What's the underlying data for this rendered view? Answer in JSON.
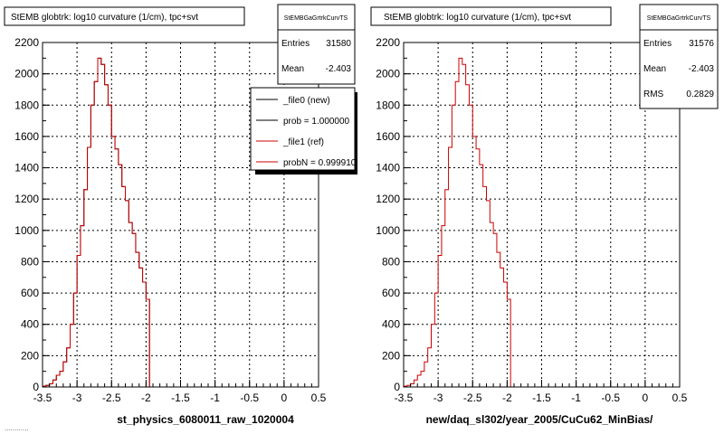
{
  "colors": {
    "background": "#ffffff",
    "frame": "#000000",
    "grid": "#000000",
    "new_line": "#000000",
    "ref_hist": "#cc0000",
    "legend_shadow": "#000000"
  },
  "left_panel": {
    "title": "StEMB globtrk: log10 curvature (1/cm), tpc+svt",
    "stats": {
      "name": "StEMBGaGrtrkCurvTS",
      "rows": [
        {
          "label": "Entries",
          "value": "31580"
        },
        {
          "label": "Mean",
          "value": "-2.403"
        }
      ]
    },
    "legend": [
      {
        "text": "_file0 (new)",
        "color": "#000000"
      },
      {
        "text": "prob = 1.000000",
        "color": "#000000"
      },
      {
        "text": "_file1 (ref)",
        "color": "#cc0000"
      },
      {
        "text": "probN = 0.999910",
        "color": "#cc0000"
      }
    ],
    "xlabel": "st_physics_6080011_raw_1020004"
  },
  "right_panel": {
    "title": "StEMB globtrk: log10 curvature (1/cm), tpc+svt",
    "stats": {
      "name": "StEMBGaGrtrkCurvTS",
      "rows": [
        {
          "label": "Entries",
          "value": "31576"
        },
        {
          "label": "Mean",
          "value": "-2.403"
        },
        {
          "label": "RMS",
          "value": "0.2829"
        }
      ]
    },
    "xlabel": "new/daq_sl302/year_2005/CuCu62_MinBias/"
  },
  "footer_text": "............",
  "chart_data": [
    {
      "type": "bar",
      "subtype": "step-histogram",
      "title": "StEMB globtrk: log10 curvature (1/cm), tpc+svt",
      "xlabel": "st_physics_6080011_raw_1020004",
      "ylabel": "",
      "xlim": [
        -3.5,
        0.5
      ],
      "ylim": [
        0,
        2200
      ],
      "xticks": [
        "-3.5",
        "-3",
        "-2.5",
        "-2",
        "-1.5",
        "-1",
        "-0.5",
        "0",
        "0.5"
      ],
      "yticks": [
        "0",
        "200",
        "400",
        "600",
        "800",
        "1000",
        "1200",
        "1400",
        "1600",
        "1800",
        "2000",
        "2200"
      ],
      "grid": true,
      "bin_width": 0.05,
      "x": [
        -3.5,
        -3.45,
        -3.4,
        -3.35,
        -3.3,
        -3.25,
        -3.2,
        -3.15,
        -3.1,
        -3.05,
        -3.0,
        -2.95,
        -2.9,
        -2.85,
        -2.8,
        -2.75,
        -2.7,
        -2.65,
        -2.6,
        -2.55,
        -2.5,
        -2.45,
        -2.4,
        -2.35,
        -2.3,
        -2.25,
        -2.2,
        -2.15,
        -2.1,
        -2.05,
        -2.0,
        -1.95,
        -1.9,
        -1.85
      ],
      "series": [
        {
          "name": "_file0 (new)",
          "values": [
            5,
            10,
            20,
            45,
            75,
            100,
            160,
            250,
            400,
            600,
            840,
            1030,
            1260,
            1530,
            1800,
            1950,
            2100,
            2060,
            1930,
            1800,
            1600,
            1520,
            1420,
            1280,
            1190,
            1050,
            980,
            860,
            760,
            670,
            560,
            0,
            0,
            0
          ]
        },
        {
          "name": "_file1 (ref)",
          "values": [
            5,
            10,
            20,
            45,
            75,
            100,
            160,
            250,
            400,
            600,
            840,
            1030,
            1260,
            1530,
            1800,
            1950,
            2100,
            2060,
            1930,
            1800,
            1600,
            1520,
            1420,
            1280,
            1190,
            1050,
            980,
            860,
            760,
            670,
            560,
            0,
            0,
            0
          ]
        }
      ]
    },
    {
      "type": "bar",
      "subtype": "step-histogram",
      "title": "StEMB globtrk: log10 curvature (1/cm), tpc+svt",
      "xlabel": "new/daq_sl302/year_2005/CuCu62_MinBias/",
      "ylabel": "",
      "xlim": [
        -3.5,
        0.5
      ],
      "ylim": [
        0,
        2200
      ],
      "xticks": [
        "-3.5",
        "-3",
        "-2.5",
        "-2",
        "-1.5",
        "-1",
        "-0.5",
        "0",
        "0.5"
      ],
      "yticks": [
        "0",
        "200",
        "400",
        "600",
        "800",
        "1000",
        "1200",
        "1400",
        "1600",
        "1800",
        "2000",
        "2200"
      ],
      "grid": true,
      "bin_width": 0.05,
      "x": [
        -3.5,
        -3.45,
        -3.4,
        -3.35,
        -3.3,
        -3.25,
        -3.2,
        -3.15,
        -3.1,
        -3.05,
        -3.0,
        -2.95,
        -2.9,
        -2.85,
        -2.8,
        -2.75,
        -2.7,
        -2.65,
        -2.6,
        -2.55,
        -2.5,
        -2.45,
        -2.4,
        -2.35,
        -2.3,
        -2.25,
        -2.2,
        -2.15,
        -2.1,
        -2.05,
        -2.0,
        -1.95,
        -1.9,
        -1.85
      ],
      "series": [
        {
          "values": [
            5,
            10,
            20,
            45,
            75,
            100,
            160,
            250,
            400,
            600,
            840,
            1030,
            1260,
            1530,
            1800,
            1950,
            2100,
            2060,
            1930,
            1800,
            1600,
            1520,
            1420,
            1280,
            1190,
            1050,
            980,
            860,
            760,
            670,
            560,
            0,
            0,
            0
          ]
        }
      ]
    }
  ]
}
